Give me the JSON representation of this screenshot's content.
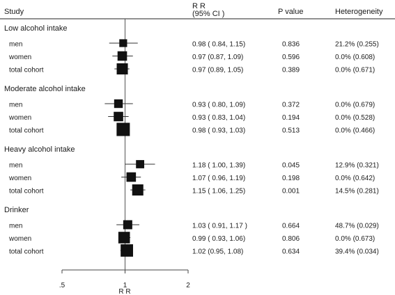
{
  "chart_data": {
    "type": "forest",
    "headers": {
      "study": "Study",
      "rr": [
        "R R",
        "(95% CI )"
      ],
      "pvalue": "P value",
      "heterogeneity": "Heterogeneity"
    },
    "xlabel": "R R",
    "xlim": [
      0.5,
      2
    ],
    "x_scale": "log",
    "reference_line": 1,
    "x_ticks": [
      {
        "value": 0.5,
        "label": ".5"
      },
      {
        "value": 1,
        "label": "1"
      },
      {
        "value": 2,
        "label": "2"
      }
    ],
    "groups": [
      {
        "name": "Low alcohol intake",
        "rows": [
          {
            "label": "men",
            "rr": 0.98,
            "lo": 0.84,
            "hi": 1.15,
            "weight": 0.35,
            "ci_text": "0.98 ( 0.84, 1.15)",
            "p": "0.836",
            "het": "21.2% (0.255)"
          },
          {
            "label": "women",
            "rr": 0.97,
            "lo": 0.87,
            "hi": 1.09,
            "weight": 0.55,
            "ci_text": "0.97 (0.87, 1.09)",
            "p": "0.596",
            "het": "0.0% (0.608)"
          },
          {
            "label": "total cohort",
            "rr": 0.97,
            "lo": 0.89,
            "hi": 1.05,
            "weight": 0.75,
            "ci_text": "0.97 (0.89, 1.05)",
            "p": "0.389",
            "het": "0.0% (0.671)"
          }
        ]
      },
      {
        "name": "Moderate alcohol intake",
        "rows": [
          {
            "label": "men",
            "rr": 0.93,
            "lo": 0.8,
            "hi": 1.09,
            "weight": 0.45,
            "ci_text": "0.93 ( 0.80, 1.09)",
            "p": "0.372",
            "het": "0.0% (0.679)"
          },
          {
            "label": "women",
            "rr": 0.93,
            "lo": 0.83,
            "hi": 1.04,
            "weight": 0.55,
            "ci_text": "0.93 ( 0.83, 1.04)",
            "p": "0.194",
            "het": "0.0% (0.528)"
          },
          {
            "label": "total cohort",
            "rr": 0.98,
            "lo": 0.93,
            "hi": 1.03,
            "weight": 1.0,
            "ci_text": "0.98 ( 0.93, 1.03)",
            "p": "0.513",
            "het": "0.0% (0.466)"
          }
        ]
      },
      {
        "name": "Heavy alcohol intake",
        "rows": [
          {
            "label": "men",
            "rr": 1.18,
            "lo": 1.0,
            "hi": 1.39,
            "weight": 0.4,
            "ci_text": "1.18 ( 1.00, 1.39)",
            "p": "0.045",
            "het": "12.9% (0.321)"
          },
          {
            "label": "women",
            "rr": 1.07,
            "lo": 0.96,
            "hi": 1.19,
            "weight": 0.55,
            "ci_text": "1.07 ( 0.96, 1.19)",
            "p": "0.198",
            "het": "0.0% (0.642)"
          },
          {
            "label": "total cohort",
            "rr": 1.15,
            "lo": 1.06,
            "hi": 1.25,
            "weight": 0.75,
            "ci_text": "1.15 ( 1.06, 1.25)",
            "p": "0.001",
            "het": "14.5% (0.281)"
          }
        ]
      },
      {
        "name": "Drinker",
        "rows": [
          {
            "label": "men",
            "rr": 1.03,
            "lo": 0.91,
            "hi": 1.17,
            "weight": 0.5,
            "ci_text": "1.03 ( 0.91, 1.17 )",
            "p": "0.664",
            "het": "48.7% (0.029)"
          },
          {
            "label": "women",
            "rr": 0.99,
            "lo": 0.93,
            "hi": 1.06,
            "weight": 0.8,
            "ci_text": "0.99 ( 0.93, 1.06)",
            "p": "0.806",
            "het": "0.0% (0.673)"
          },
          {
            "label": "total cohort",
            "rr": 1.02,
            "lo": 0.95,
            "hi": 1.08,
            "weight": 0.9,
            "ci_text": "1.02 (0.95, 1.08)",
            "p": "0.634",
            "het": "39.4% (0.034)"
          }
        ]
      }
    ],
    "colors": {
      "marker": "#111111",
      "line": "#333333",
      "text": "#1a1a1a"
    }
  }
}
